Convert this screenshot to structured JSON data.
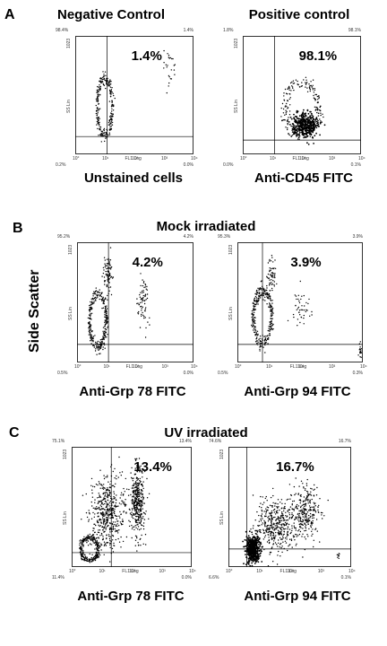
{
  "panels": [
    {
      "letter": "A",
      "group_title": ""
    },
    {
      "letter": "B",
      "group_title": "Mock irradiated"
    },
    {
      "letter": "C",
      "group_title": "UV irradiated"
    }
  ],
  "side_label": "Side Scatter",
  "chart_data": [
    {
      "type": "scatter",
      "panel": "A",
      "title": "Negative Control",
      "xlabel": "Unstained cells",
      "annotation": "1.4%",
      "x_axis_name": "FL1 Log",
      "y_axis_name": "SS Lin",
      "y_max_label": "1023",
      "x_ticks": [
        "10°",
        "10¹",
        "10²",
        "10³",
        "10⁴"
      ],
      "quadrants": {
        "ul": "98.4%",
        "ur": "1.4%",
        "ll": "0.2%",
        "lr": "0.0%"
      },
      "log_scale_x": true,
      "populations": [
        {
          "shape": "ring",
          "cx": 0.25,
          "cy": 0.4,
          "rx": 0.08,
          "ry": 0.3,
          "n": 260
        },
        {
          "shape": "blob",
          "cx": 0.8,
          "cy": 0.75,
          "rx": 0.06,
          "ry": 0.15,
          "n": 25
        }
      ]
    },
    {
      "type": "scatter",
      "panel": "A",
      "title": "Positive control",
      "xlabel": "Anti-CD45 FITC",
      "annotation": "98.1%",
      "x_axis_name": "FL1 Log",
      "y_axis_name": "SS Lin",
      "y_max_label": "1023",
      "x_ticks": [
        "10°",
        "10¹",
        "10²",
        "10³",
        "10⁴"
      ],
      "quadrants": {
        "ul": "1.8%",
        "ur": "98.1%",
        "ll": "0.0%",
        "lr": "0.1%"
      },
      "log_scale_x": true,
      "populations": [
        {
          "shape": "dense",
          "cx": 0.52,
          "cy": 0.25,
          "rx": 0.12,
          "ry": 0.11,
          "n": 400
        },
        {
          "shape": "ring",
          "cx": 0.5,
          "cy": 0.38,
          "rx": 0.18,
          "ry": 0.28,
          "n": 220
        }
      ]
    },
    {
      "type": "scatter",
      "panel": "B",
      "title": "",
      "xlabel": "Anti-Grp 78 FITC",
      "annotation": "4.2%",
      "x_axis_name": "FL1 Log",
      "y_axis_name": "SS Lin",
      "y_max_label": "1023",
      "x_ticks": [
        "10°",
        "10¹",
        "10²",
        "10³",
        "10⁴"
      ],
      "quadrants": {
        "ul": "95.2%",
        "ur": "4.2%",
        "ll": "0.5%",
        "lr": "0.0%"
      },
      "log_scale_x": true,
      "populations": [
        {
          "shape": "ring",
          "cx": 0.18,
          "cy": 0.35,
          "rx": 0.09,
          "ry": 0.28,
          "n": 300
        },
        {
          "shape": "blob",
          "cx": 0.27,
          "cy": 0.72,
          "rx": 0.04,
          "ry": 0.15,
          "n": 80
        },
        {
          "shape": "blob",
          "cx": 0.57,
          "cy": 0.5,
          "rx": 0.05,
          "ry": 0.2,
          "n": 70
        }
      ]
    },
    {
      "type": "scatter",
      "panel": "B",
      "title": "",
      "xlabel": "Anti-Grp 94 FITC",
      "annotation": "3.9%",
      "x_axis_name": "FL1 Log",
      "y_axis_name": "SS Lin",
      "y_max_label": "1023",
      "x_ticks": [
        "10°",
        "10¹",
        "10²",
        "10³",
        "10⁴"
      ],
      "quadrants": {
        "ul": "95.3%",
        "ur": "3.9%",
        "ll": "0.5%",
        "lr": "0.3%"
      },
      "log_scale_x": true,
      "populations": [
        {
          "shape": "ring",
          "cx": 0.2,
          "cy": 0.38,
          "rx": 0.09,
          "ry": 0.28,
          "n": 300
        },
        {
          "shape": "blob",
          "cx": 0.27,
          "cy": 0.72,
          "rx": 0.04,
          "ry": 0.15,
          "n": 60
        },
        {
          "shape": "blob",
          "cx": 0.5,
          "cy": 0.45,
          "rx": 0.07,
          "ry": 0.15,
          "n": 45
        },
        {
          "shape": "blob",
          "cx": 0.98,
          "cy": 0.1,
          "rx": 0.01,
          "ry": 0.08,
          "n": 20
        }
      ]
    },
    {
      "type": "scatter",
      "panel": "C",
      "title": "",
      "xlabel": "Anti-Grp 78 FITC",
      "annotation": "13.4%",
      "x_axis_name": "FL1 Log",
      "y_axis_name": "SS Lin",
      "y_max_label": "1023",
      "x_ticks": [
        "10°",
        "10¹",
        "10²",
        "10³",
        "10⁴"
      ],
      "quadrants": {
        "ul": "75.1%",
        "ur": "13.4%",
        "ll": "11.4%",
        "lr": "0.0%"
      },
      "log_scale_x": true,
      "populations": [
        {
          "shape": "ring",
          "cx": 0.15,
          "cy": 0.15,
          "rx": 0.09,
          "ry": 0.12,
          "n": 260
        },
        {
          "shape": "blob",
          "cx": 0.3,
          "cy": 0.45,
          "rx": 0.15,
          "ry": 0.28,
          "n": 500
        },
        {
          "shape": "blob",
          "cx": 0.55,
          "cy": 0.55,
          "rx": 0.06,
          "ry": 0.3,
          "n": 380
        }
      ]
    },
    {
      "type": "scatter",
      "panel": "C",
      "title": "",
      "xlabel": "Anti-Grp 94 FITC",
      "annotation": "16.7%",
      "x_axis_name": "FL1 Log",
      "y_axis_name": "SS Lin",
      "y_max_label": "1023",
      "x_ticks": [
        "10°",
        "10¹",
        "10²",
        "10³",
        "10⁴"
      ],
      "quadrants": {
        "ul": "74.6%",
        "ur": "16.7%",
        "ll": "6.6%",
        "lr": "0.1%"
      },
      "log_scale_x": true,
      "populations": [
        {
          "shape": "dense",
          "cx": 0.2,
          "cy": 0.15,
          "rx": 0.06,
          "ry": 0.12,
          "n": 500
        },
        {
          "shape": "blob",
          "cx": 0.38,
          "cy": 0.35,
          "rx": 0.15,
          "ry": 0.22,
          "n": 400
        },
        {
          "shape": "blob",
          "cx": 0.62,
          "cy": 0.45,
          "rx": 0.12,
          "ry": 0.22,
          "n": 300
        },
        {
          "shape": "blob",
          "cx": 0.9,
          "cy": 0.1,
          "rx": 0.02,
          "ry": 0.05,
          "n": 8
        }
      ]
    }
  ]
}
